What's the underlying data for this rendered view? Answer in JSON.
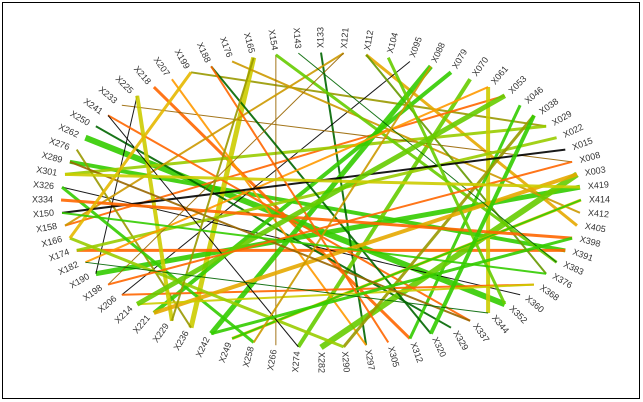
{
  "chart_data": {
    "type": "network",
    "nodes": [
      "X334",
      "X326",
      "X301",
      "X289",
      "X276",
      "X262",
      "X250",
      "X241",
      "X233",
      "X225",
      "X218",
      "X207",
      "X199",
      "X188",
      "X176",
      "X165",
      "X154",
      "X143",
      "X133",
      "X121",
      "X112",
      "X104",
      "X095",
      "X088",
      "X079",
      "X070",
      "X061",
      "X053",
      "X046",
      "X038",
      "X029",
      "X022",
      "X015",
      "X008",
      "X003",
      "X419",
      "X414",
      "X412",
      "X405",
      "X398",
      "X391",
      "X383",
      "X376",
      "X368",
      "X360",
      "X352",
      "X344",
      "X337",
      "X329",
      "X320",
      "X312",
      "X305",
      "X297",
      "X290",
      "X282",
      "X274",
      "X266",
      "X258",
      "X249",
      "X242",
      "X236",
      "X229",
      "X221",
      "X214",
      "X206",
      "X198",
      "X190",
      "X182",
      "X174",
      "X166",
      "X158",
      "X150"
    ],
    "edges": [
      {
        "source": 3,
        "target": 40,
        "weight": 4,
        "color": "#33cc00"
      },
      {
        "source": 5,
        "target": 45,
        "weight": 6,
        "color": "#33cc00"
      },
      {
        "source": 10,
        "target": 50,
        "weight": 3,
        "color": "#ff6600"
      },
      {
        "source": 12,
        "target": 30,
        "weight": 2,
        "color": "#999900"
      },
      {
        "source": 15,
        "target": 60,
        "weight": 5,
        "color": "#cccc00"
      },
      {
        "source": 18,
        "target": 52,
        "weight": 2,
        "color": "#006600"
      },
      {
        "source": 20,
        "target": 38,
        "weight": 3,
        "color": "#e6a800"
      },
      {
        "source": 22,
        "target": 64,
        "weight": 1,
        "color": "#000000"
      },
      {
        "source": 25,
        "target": 55,
        "weight": 4,
        "color": "#66cc00"
      },
      {
        "source": 27,
        "target": 70,
        "weight": 2,
        "color": "#ff6600"
      },
      {
        "source": 30,
        "target": 2,
        "weight": 3,
        "color": "#99cc00"
      },
      {
        "source": 33,
        "target": 8,
        "weight": 1,
        "color": "#996600"
      },
      {
        "source": 35,
        "target": 66,
        "weight": 5,
        "color": "#33cc00"
      },
      {
        "source": 37,
        "target": 14,
        "weight": 2,
        "color": "#cc9900"
      },
      {
        "source": 40,
        "target": 68,
        "weight": 3,
        "color": "#ff6600"
      },
      {
        "source": 42,
        "target": 20,
        "weight": 2,
        "color": "#669900"
      },
      {
        "source": 44,
        "target": 1,
        "weight": 1,
        "color": "#000000"
      },
      {
        "source": 46,
        "target": 26,
        "weight": 4,
        "color": "#cccc00"
      },
      {
        "source": 48,
        "target": 6,
        "weight": 2,
        "color": "#006600"
      },
      {
        "source": 50,
        "target": 28,
        "weight": 3,
        "color": "#33cc00"
      },
      {
        "source": 52,
        "target": 11,
        "weight": 2,
        "color": "#ff9900"
      },
      {
        "source": 54,
        "target": 34,
        "weight": 6,
        "color": "#66cc00"
      },
      {
        "source": 56,
        "target": 16,
        "weight": 1,
        "color": "#996600"
      },
      {
        "source": 58,
        "target": 36,
        "weight": 3,
        "color": "#e6b800"
      },
      {
        "source": 60,
        "target": 4,
        "weight": 2,
        "color": "#999900"
      },
      {
        "source": 62,
        "target": 24,
        "weight": 4,
        "color": "#33cc00"
      },
      {
        "source": 64,
        "target": 43,
        "weight": 2,
        "color": "#ff6600"
      },
      {
        "source": 66,
        "target": 9,
        "weight": 1,
        "color": "#000000"
      },
      {
        "source": 68,
        "target": 31,
        "weight": 3,
        "color": "#99cc00"
      },
      {
        "source": 70,
        "target": 19,
        "weight": 2,
        "color": "#cc9900"
      },
      {
        "source": 1,
        "target": 57,
        "weight": 3,
        "color": "#33cc00"
      },
      {
        "source": 7,
        "target": 47,
        "weight": 2,
        "color": "#ff6600"
      },
      {
        "source": 9,
        "target": 61,
        "weight": 4,
        "color": "#cccc00"
      },
      {
        "source": 13,
        "target": 49,
        "weight": 2,
        "color": "#006600"
      },
      {
        "source": 16,
        "target": 41,
        "weight": 3,
        "color": "#66cc00"
      },
      {
        "source": 19,
        "target": 65,
        "weight": 1,
        "color": "#996600"
      },
      {
        "source": 23,
        "target": 59,
        "weight": 5,
        "color": "#33cc00"
      },
      {
        "source": 26,
        "target": 67,
        "weight": 2,
        "color": "#ff9900"
      },
      {
        "source": 29,
        "target": 53,
        "weight": 3,
        "color": "#999900"
      },
      {
        "source": 32,
        "target": 71,
        "weight": 2,
        "color": "#000000"
      },
      {
        "source": 34,
        "target": 62,
        "weight": 4,
        "color": "#e6a800"
      },
      {
        "source": 36,
        "target": 58,
        "weight": 2,
        "color": "#33cc00"
      },
      {
        "source": 39,
        "target": 0,
        "weight": 3,
        "color": "#ff6600"
      },
      {
        "source": 41,
        "target": 17,
        "weight": 1,
        "color": "#006600"
      },
      {
        "source": 43,
        "target": 63,
        "weight": 2,
        "color": "#cccc00"
      },
      {
        "source": 45,
        "target": 21,
        "weight": 3,
        "color": "#66cc00"
      },
      {
        "source": 47,
        "target": 3,
        "weight": 2,
        "color": "#996600"
      },
      {
        "source": 49,
        "target": 29,
        "weight": 4,
        "color": "#33cc00"
      },
      {
        "source": 51,
        "target": 13,
        "weight": 2,
        "color": "#ff6600"
      },
      {
        "source": 53,
        "target": 69,
        "weight": 3,
        "color": "#99cc00"
      },
      {
        "source": 55,
        "target": 7,
        "weight": 1,
        "color": "#000000"
      },
      {
        "source": 57,
        "target": 23,
        "weight": 2,
        "color": "#cc9900"
      },
      {
        "source": 59,
        "target": 39,
        "weight": 3,
        "color": "#33cc00"
      },
      {
        "source": 61,
        "target": 15,
        "weight": 2,
        "color": "#999900"
      },
      {
        "source": 63,
        "target": 27,
        "weight": 5,
        "color": "#66cc00"
      },
      {
        "source": 65,
        "target": 33,
        "weight": 2,
        "color": "#ff6600"
      },
      {
        "source": 67,
        "target": 46,
        "weight": 1,
        "color": "#006600"
      },
      {
        "source": 69,
        "target": 12,
        "weight": 3,
        "color": "#e6b800"
      },
      {
        "source": 71,
        "target": 42,
        "weight": 2,
        "color": "#33cc00"
      },
      {
        "source": 2,
        "target": 35,
        "weight": 3,
        "color": "#cccc00"
      }
    ]
  }
}
